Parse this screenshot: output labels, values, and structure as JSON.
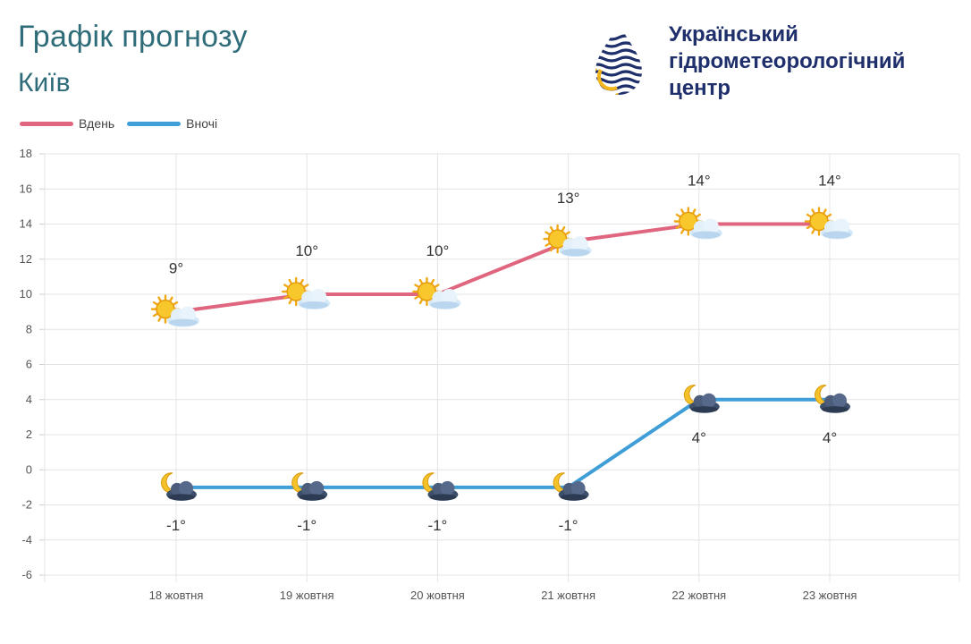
{
  "header": {
    "title": "Графік прогнозу",
    "subtitle": "Київ"
  },
  "organization": {
    "name": "Український\nгідрометеорологічний\nцентр",
    "logo_icon": "hydromet-drop-logo-icon",
    "colors": {
      "navy": "#1f2f6b",
      "gold": "#f2b51c"
    }
  },
  "legend": [
    {
      "label": "Вдень",
      "color": "#e0657f"
    },
    {
      "label": "Вночі",
      "color": "#3f9ed8"
    }
  ],
  "chart_data": {
    "type": "line",
    "categories": [
      "18 жовтня",
      "19 жовтня",
      "20 жовтня",
      "21 жовтня",
      "22 жовтня",
      "23 жовтня"
    ],
    "series": [
      {
        "name": "Вдень",
        "values": [
          9,
          10,
          10,
          13,
          14,
          14
        ],
        "labels": [
          "9°",
          "10°",
          "10°",
          "13°",
          "14°",
          "14°"
        ],
        "color": "#e0657f",
        "icon": "sun-behind-cloud-icon",
        "label_position": "above"
      },
      {
        "name": "Вночі",
        "values": [
          -1,
          -1,
          -1,
          -1,
          4,
          4
        ],
        "labels": [
          "-1°",
          "-1°",
          "-1°",
          "-1°",
          "4°",
          "4°"
        ],
        "color": "#3f9ed8",
        "icon": "moon-cloud-icon",
        "label_position": "below"
      }
    ],
    "ylim": [
      -6,
      18
    ],
    "yticks": [
      -6,
      -4,
      -2,
      0,
      2,
      4,
      6,
      8,
      10,
      12,
      14,
      16,
      18
    ],
    "grid": true,
    "legend_position": "top-left"
  }
}
